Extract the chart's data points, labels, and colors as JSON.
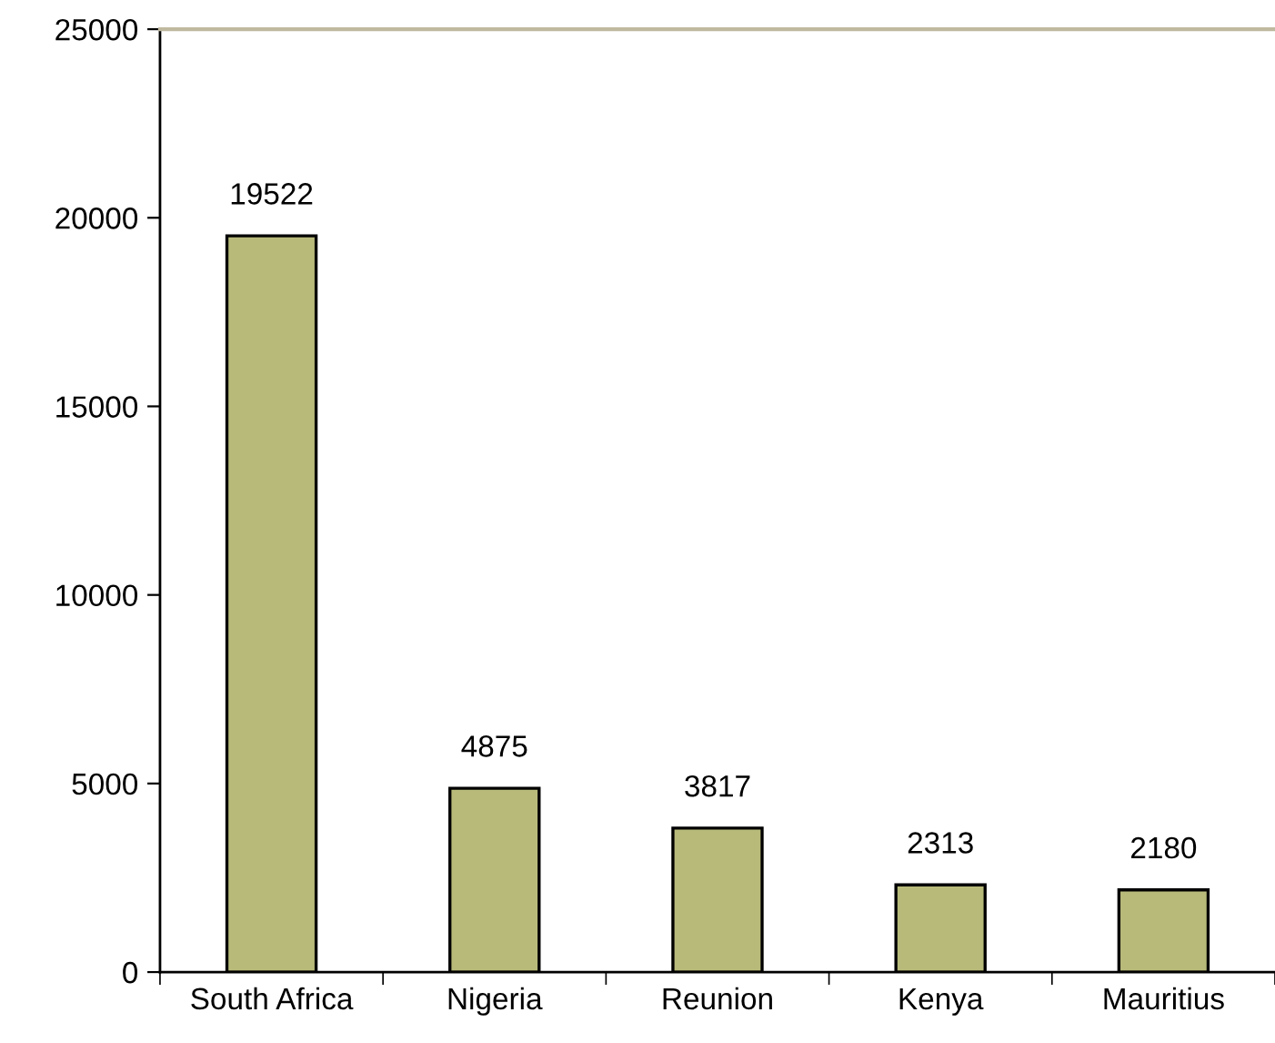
{
  "chart_data": {
    "type": "bar",
    "categories": [
      "South Africa",
      "Nigeria",
      "Reunion",
      "Kenya",
      "Mauritius"
    ],
    "values": [
      19522,
      4875,
      3817,
      2313,
      2180
    ],
    "color": "#b8ba7a",
    "ylim": [
      0,
      25000
    ],
    "yticks": [
      0,
      5000,
      10000,
      15000,
      20000,
      25000
    ],
    "grid": false,
    "data_labels": true
  }
}
